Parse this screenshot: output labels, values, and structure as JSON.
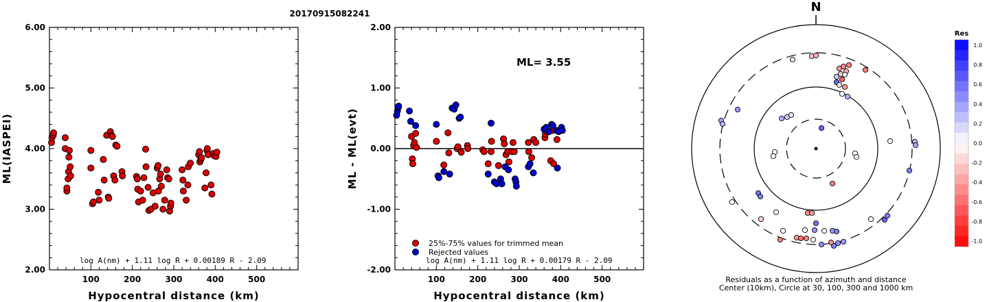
{
  "title": "20170915082241",
  "colors": {
    "accepted": "#dd0000",
    "rejected": "#0000cc",
    "frame": "#000000"
  },
  "left_chart": {
    "ylabel": "ML(IASPEI)",
    "xlabel": "Hypocentral distance (km)",
    "formula": "log A(nm) + 1.11 log R + 0.00189 R - 2.09",
    "xticks": [
      "100",
      "200",
      "300",
      "400",
      "500"
    ],
    "yticks": [
      "2.00",
      "3.00",
      "4.00",
      "5.00",
      "6.00"
    ]
  },
  "mid_chart": {
    "ylabel": "ML - ML(evt)",
    "xlabel": "Hypocentral distance (km)",
    "ml_text": "ML= 3.55",
    "legend": [
      "25%-75% values for trimmed mean",
      "Rejected values"
    ],
    "formula": "log A(nm) + 1.11 log R + 0.00179 R - 2.09",
    "xticks": [
      "100",
      "200",
      "300",
      "400",
      "500"
    ],
    "yticks": [
      "-2.00",
      "-1.00",
      "0.00",
      "1.00",
      "2.00"
    ]
  },
  "polar": {
    "north": "N",
    "caption1": "Residuals as a function of azimuth and distance",
    "caption2": "Center (10km), Circle at 30, 100, 300 and 1000 km"
  },
  "colorbar": {
    "title": "Res",
    "labels": [
      "1.0",
      "0.8",
      "0.6",
      "0.4",
      "0.2",
      "0.0",
      "-0.2",
      "-0.4",
      "-0.6",
      "-0.8",
      "-1.0"
    ]
  },
  "chart_data": [
    {
      "type": "scatter",
      "title": "20170915082241",
      "xlabel": "Hypocentral distance (km)",
      "ylabel": "ML(IASPEI)",
      "xlim": [
        0,
        600
      ],
      "ylim": [
        2,
        6
      ],
      "points": [
        [
          5,
          4.1
        ],
        [
          6,
          4.18
        ],
        [
          9,
          4.22
        ],
        [
          10,
          4.26
        ],
        [
          38,
          4.18
        ],
        [
          38,
          4.0
        ],
        [
          42,
          3.3
        ],
        [
          42,
          3.35
        ],
        [
          45,
          3.5
        ],
        [
          46,
          3.62
        ],
        [
          47,
          3.86
        ],
        [
          48,
          3.97
        ],
        [
          50,
          3.7
        ],
        [
          51,
          3.55
        ],
        [
          100,
          3.97
        ],
        [
          100,
          3.68
        ],
        [
          104,
          3.09
        ],
        [
          106,
          3.12
        ],
        [
          118,
          3.28
        ],
        [
          120,
          3.15
        ],
        [
          130,
          3.82
        ],
        [
          132,
          3.48
        ],
        [
          138,
          4.22
        ],
        [
          142,
          3.2
        ],
        [
          143,
          3.18
        ],
        [
          147,
          4.28
        ],
        [
          150,
          4.22
        ],
        [
          152,
          4.2
        ],
        [
          155,
          3.55
        ],
        [
          158,
          3.48
        ],
        [
          160,
          4.06
        ],
        [
          163,
          4.04
        ],
        [
          175,
          3.62
        ],
        [
          176,
          3.55
        ],
        [
          210,
          3.54
        ],
        [
          212,
          3.5
        ],
        [
          213,
          3.33
        ],
        [
          215,
          3.12
        ],
        [
          220,
          3.3
        ],
        [
          225,
          3.15
        ],
        [
          228,
          3.52
        ],
        [
          232,
          3.99
        ],
        [
          233,
          3.7
        ],
        [
          238,
          3.36
        ],
        [
          240,
          2.98
        ],
        [
          245,
          3.0
        ],
        [
          250,
          3.27
        ],
        [
          255,
          3.05
        ],
        [
          260,
          3.68
        ],
        [
          262,
          3.72
        ],
        [
          263,
          3.3
        ],
        [
          266,
          3.5
        ],
        [
          268,
          3.58
        ],
        [
          270,
          3.38
        ],
        [
          274,
          3.0
        ],
        [
          278,
          3.15
        ],
        [
          283,
          3.65
        ],
        [
          285,
          3.52
        ],
        [
          288,
          3.5
        ],
        [
          290,
          2.97
        ],
        [
          292,
          3.05
        ],
        [
          293,
          3.1
        ],
        [
          320,
          3.65
        ],
        [
          322,
          3.48
        ],
        [
          323,
          3.3
        ],
        [
          330,
          3.15
        ],
        [
          334,
          3.4
        ],
        [
          335,
          3.7
        ],
        [
          340,
          3.76
        ],
        [
          360,
          3.9
        ],
        [
          362,
          3.95
        ],
        [
          363,
          3.78
        ],
        [
          365,
          3.82
        ],
        [
          367,
          3.85
        ],
        [
          375,
          3.35
        ],
        [
          378,
          3.6
        ],
        [
          380,
          3.97
        ],
        [
          381,
          4.0
        ],
        [
          383,
          3.9
        ],
        [
          390,
          3.4
        ],
        [
          392,
          3.25
        ],
        [
          395,
          3.92
        ],
        [
          398,
          3.88
        ],
        [
          402,
          3.87
        ],
        [
          404,
          3.94
        ]
      ]
    },
    {
      "type": "scatter",
      "xlabel": "Hypocentral distance (km)",
      "ylabel": "ML - ML(evt)",
      "xlim": [
        0,
        600
      ],
      "ylim": [
        -2,
        2
      ],
      "annotation": "ML= 3.55",
      "series": [
        {
          "name": "25%-75% values for trimmed mean",
          "points": [
            [
              40,
              0.2
            ],
            [
              42,
              -0.17
            ],
            [
              43,
              -0.25
            ],
            [
              45,
              0.05
            ],
            [
              47,
              0.1
            ],
            [
              50,
              0.25
            ],
            [
              52,
              0.02
            ],
            [
              100,
              0.12
            ],
            [
              118,
              -0.27
            ],
            [
              128,
              0.26
            ],
            [
              130,
              -0.07
            ],
            [
              150,
              0.0
            ],
            [
              152,
              0.03
            ],
            [
              160,
              -0.06
            ],
            [
              175,
              0.05
            ],
            [
              176,
              0.0
            ],
            [
              212,
              -0.02
            ],
            [
              215,
              -0.05
            ],
            [
              225,
              -0.25
            ],
            [
              232,
              -0.05
            ],
            [
              233,
              0.12
            ],
            [
              250,
              -0.28
            ],
            [
              262,
              0.16
            ],
            [
              264,
              0.08
            ],
            [
              268,
              -0.1
            ],
            [
              272,
              -0.05
            ],
            [
              275,
              -0.22
            ],
            [
              283,
              -0.05
            ],
            [
              285,
              0.1
            ],
            [
              288,
              -0.05
            ],
            [
              322,
              0.1
            ],
            [
              323,
              -0.05
            ],
            [
              330,
              -0.15
            ],
            [
              335,
              0.15
            ],
            [
              340,
              0.1
            ],
            [
              362,
              0.18
            ],
            [
              363,
              0.24
            ],
            [
              367,
              0.28
            ],
            [
              376,
              -0.2
            ],
            [
              380,
              0.3
            ],
            [
              383,
              -0.25
            ],
            [
              391,
              0.15
            ]
          ]
        },
        {
          "name": "Rejected values",
          "points": [
            [
              4,
              0.55
            ],
            [
              6,
              0.62
            ],
            [
              8,
              0.68
            ],
            [
              9,
              0.7
            ],
            [
              35,
              0.62
            ],
            [
              38,
              0.45
            ],
            [
              50,
              0.38
            ],
            [
              100,
              0.4
            ],
            [
              104,
              -0.45
            ],
            [
              106,
              -0.48
            ],
            [
              118,
              -0.38
            ],
            [
              132,
              -0.42
            ],
            [
              138,
              0.67
            ],
            [
              143,
              0.65
            ],
            [
              147,
              0.72
            ],
            [
              155,
              0.5
            ],
            [
              158,
              0.52
            ],
            [
              225,
              -0.42
            ],
            [
              232,
              0.42
            ],
            [
              240,
              -0.55
            ],
            [
              245,
              -0.58
            ],
            [
              255,
              -0.5
            ],
            [
              258,
              -0.58
            ],
            [
              266,
              -0.3
            ],
            [
              274,
              -0.35
            ],
            [
              290,
              -0.5
            ],
            [
              292,
              -0.55
            ],
            [
              293,
              -0.62
            ],
            [
              322,
              -0.3
            ],
            [
              326,
              -0.25
            ],
            [
              334,
              -0.4
            ],
            [
              360,
              0.32
            ],
            [
              365,
              0.35
            ],
            [
              372,
              0.28
            ],
            [
              378,
              0.4
            ],
            [
              381,
              0.38
            ],
            [
              390,
              0.3
            ],
            [
              392,
              -0.32
            ],
            [
              395,
              0.28
            ],
            [
              402,
              0.35
            ],
            [
              404,
              0.3
            ]
          ]
        }
      ]
    }
  ]
}
